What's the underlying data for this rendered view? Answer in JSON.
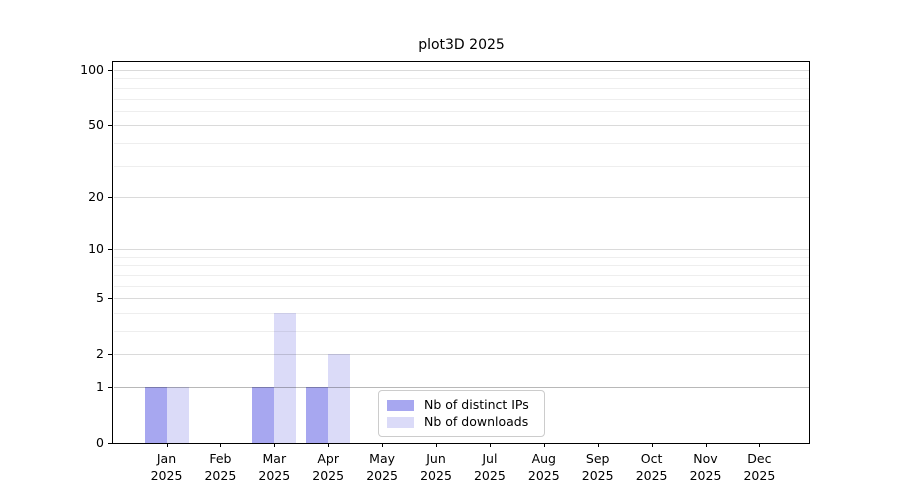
{
  "title": "plot3D 2025",
  "colors": {
    "distinct_ips": "#a7a7f0",
    "downloads": "#dbdbf8",
    "grid_major": "#dadada",
    "grid_minor": "#eeeeee",
    "grid_unit_line": "#b8b8b8",
    "axis": "#000000",
    "legend_border": "#cccccc",
    "background": "#ffffff"
  },
  "legend": {
    "position": "lower center",
    "items": [
      {
        "label": "Nb of distinct IPs",
        "color_key": "distinct_ips"
      },
      {
        "label": "Nb of downloads",
        "color_key": "downloads"
      }
    ]
  },
  "chart_data": {
    "type": "bar",
    "title": "plot3D 2025",
    "categories": [
      "Jan",
      "Feb",
      "Mar",
      "Apr",
      "May",
      "Jun",
      "Jul",
      "Aug",
      "Sep",
      "Oct",
      "Nov",
      "Dec"
    ],
    "year": "2025",
    "series": [
      {
        "name": "Nb of distinct IPs",
        "color_key": "distinct_ips",
        "values": [
          1,
          0,
          1,
          1,
          0,
          0,
          0,
          0,
          0,
          0,
          0,
          0
        ]
      },
      {
        "name": "Nb of downloads",
        "color_key": "downloads",
        "values": [
          1,
          0,
          4,
          2,
          0,
          0,
          0,
          0,
          0,
          0,
          0,
          0
        ]
      }
    ],
    "xlabel": "",
    "ylabel": "",
    "y_scale": "log10(1+y)",
    "ylim": [
      0,
      112
    ],
    "y_major_ticks": [
      {
        "value": 0,
        "label": "0"
      },
      {
        "value": 1,
        "label": "1"
      },
      {
        "value": 2,
        "label": "2"
      },
      {
        "value": 5,
        "label": "5"
      },
      {
        "value": 10,
        "label": "10"
      },
      {
        "value": 20,
        "label": "20"
      },
      {
        "value": 50,
        "label": "50"
      },
      {
        "value": 100,
        "label": "100"
      }
    ],
    "y_minor_ticks": [
      3,
      4,
      6,
      7,
      8,
      9,
      30,
      40,
      60,
      70,
      80,
      90
    ],
    "grid": "horizontal-only",
    "legend_position": "lower center"
  }
}
